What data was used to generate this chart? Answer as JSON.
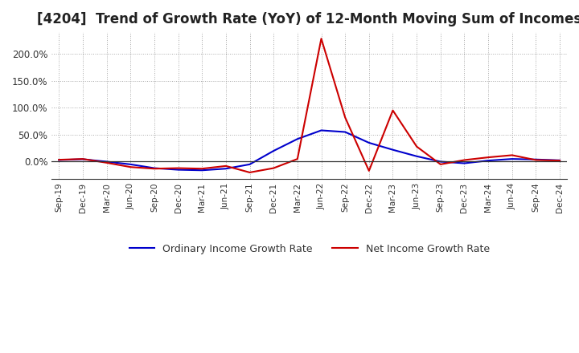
{
  "title": "[4204]  Trend of Growth Rate (YoY) of 12-Month Moving Sum of Incomes",
  "title_fontsize": 12,
  "background_color": "#ffffff",
  "plot_background_color": "#ffffff",
  "grid_color": "#aaaaaa",
  "x_labels": [
    "Sep-19",
    "Dec-19",
    "Mar-20",
    "Jun-20",
    "Sep-20",
    "Dec-20",
    "Mar-21",
    "Jun-21",
    "Sep-21",
    "Dec-21",
    "Mar-22",
    "Jun-22",
    "Sep-22",
    "Dec-22",
    "Mar-23",
    "Jun-23",
    "Sep-23",
    "Dec-23",
    "Mar-24",
    "Jun-24",
    "Sep-24",
    "Dec-24"
  ],
  "ordinary_income": [
    3.0,
    4.5,
    0.0,
    -5.0,
    -12.0,
    -15.0,
    -16.0,
    -13.0,
    -5.0,
    20.0,
    42.0,
    58.0,
    55.0,
    35.0,
    22.0,
    10.0,
    0.0,
    -3.0,
    2.0,
    5.0,
    4.0,
    2.5
  ],
  "net_income": [
    3.5,
    5.0,
    -2.0,
    -10.0,
    -13.0,
    -12.0,
    -13.0,
    -8.0,
    -20.0,
    -12.0,
    5.0,
    228.0,
    82.0,
    -17.0,
    95.0,
    28.0,
    -5.0,
    3.0,
    8.0,
    12.0,
    3.0,
    2.0
  ],
  "ordinary_color": "#0000cc",
  "net_color": "#cc0000",
  "ylim_min": -32,
  "ylim_max": 240,
  "yticks": [
    0,
    50,
    100,
    150,
    200
  ],
  "legend_labels": [
    "Ordinary Income Growth Rate",
    "Net Income Growth Rate"
  ],
  "line_width": 1.5
}
